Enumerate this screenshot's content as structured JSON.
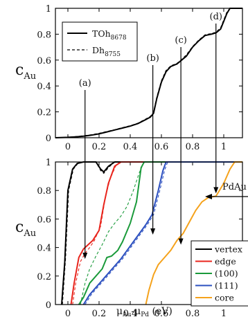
{
  "chart_data": [
    {
      "type": "line",
      "panel": "top",
      "ylabel_main": "c",
      "ylabel_sub": "Au",
      "xlim": [
        -0.08,
        1.12
      ],
      "ylim": [
        0,
        1
      ],
      "xticks": [
        "0",
        "0.2",
        "0.4",
        "0.6",
        "0.8",
        "1"
      ],
      "xtick_values": [
        0,
        0.2,
        0.4,
        0.6,
        0.8,
        1
      ],
      "yticks": [
        "0",
        "0.2",
        "0.4",
        "0.6",
        "0.8",
        "1"
      ],
      "ytick_values": [
        0,
        0.2,
        0.4,
        0.6,
        0.8,
        1
      ],
      "legend_position": "top-left",
      "series": [
        {
          "name_main": "TOh",
          "name_sub": "8678",
          "style": "solid",
          "color": "#000000",
          "points": [
            [
              -0.08,
              0.0
            ],
            [
              0,
              0.003
            ],
            [
              0.05,
              0.007
            ],
            [
              0.1,
              0.012
            ],
            [
              0.15,
              0.02
            ],
            [
              0.2,
              0.03
            ],
            [
              0.25,
              0.045
            ],
            [
              0.3,
              0.06
            ],
            [
              0.35,
              0.075
            ],
            [
              0.4,
              0.09
            ],
            [
              0.45,
              0.11
            ],
            [
              0.5,
              0.14
            ],
            [
              0.53,
              0.16
            ],
            [
              0.55,
              0.19
            ],
            [
              0.57,
              0.3
            ],
            [
              0.6,
              0.43
            ],
            [
              0.63,
              0.51
            ],
            [
              0.66,
              0.55
            ],
            [
              0.7,
              0.57
            ],
            [
              0.73,
              0.6
            ],
            [
              0.76,
              0.63
            ],
            [
              0.8,
              0.7
            ],
            [
              0.84,
              0.75
            ],
            [
              0.88,
              0.79
            ],
            [
              0.92,
              0.8
            ],
            [
              0.95,
              0.81
            ],
            [
              0.98,
              0.84
            ],
            [
              1.0,
              0.9
            ],
            [
              1.02,
              0.96
            ],
            [
              1.04,
              1.0
            ],
            [
              1.12,
              1.0
            ]
          ]
        },
        {
          "name_main": "Dh",
          "name_sub": "8755",
          "style": "dashed",
          "color": "#000000",
          "points": [
            [
              -0.08,
              0.0
            ],
            [
              0,
              0.004
            ],
            [
              0.05,
              0.009
            ],
            [
              0.1,
              0.015
            ],
            [
              0.15,
              0.023
            ],
            [
              0.2,
              0.034
            ],
            [
              0.25,
              0.048
            ],
            [
              0.3,
              0.062
            ],
            [
              0.35,
              0.078
            ],
            [
              0.4,
              0.093
            ],
            [
              0.45,
              0.113
            ],
            [
              0.5,
              0.145
            ],
            [
              0.53,
              0.165
            ],
            [
              0.55,
              0.2
            ],
            [
              0.57,
              0.31
            ],
            [
              0.6,
              0.44
            ],
            [
              0.63,
              0.52
            ],
            [
              0.66,
              0.555
            ],
            [
              0.7,
              0.575
            ],
            [
              0.73,
              0.605
            ],
            [
              0.76,
              0.64
            ],
            [
              0.8,
              0.705
            ],
            [
              0.84,
              0.755
            ],
            [
              0.88,
              0.795
            ],
            [
              0.92,
              0.805
            ],
            [
              0.95,
              0.815
            ],
            [
              0.98,
              0.85
            ],
            [
              1.0,
              0.91
            ],
            [
              1.02,
              0.97
            ],
            [
              1.04,
              1.0
            ],
            [
              1.12,
              1.0
            ]
          ]
        }
      ],
      "annotations": [
        {
          "label": "(a)",
          "x": 0.11
        },
        {
          "label": "(b)",
          "x": 0.545
        },
        {
          "label": "(c)",
          "x": 0.725
        },
        {
          "label": "(d)",
          "x": 0.95
        }
      ]
    },
    {
      "type": "line",
      "panel": "bottom",
      "ylabel_main": "c",
      "ylabel_sub": "Au",
      "xlabel_parts": [
        "μ",
        "Au",
        "-μ",
        "Pd",
        " (eV)"
      ],
      "xlim": [
        -0.08,
        1.12
      ],
      "ylim": [
        0,
        1
      ],
      "xticks": [
        "0",
        "0.2",
        "0.4",
        "0.6",
        "0.8",
        "1"
      ],
      "xtick_values": [
        0,
        0.2,
        0.4,
        0.6,
        0.8,
        1
      ],
      "yticks": [
        "0",
        "0.2",
        "0.4",
        "0.6",
        "0.8",
        "1"
      ],
      "ytick_values": [
        0,
        0.2,
        0.4,
        0.6,
        0.8,
        1
      ],
      "legend_position": "bottom-right",
      "annotation_text": "PdAu",
      "series": [
        {
          "name": "vertex",
          "color": "#000000",
          "solid": [
            [
              -0.04,
              0.0
            ],
            [
              -0.02,
              0.3
            ],
            [
              0,
              0.8
            ],
            [
              0.03,
              0.95
            ],
            [
              0.06,
              0.99
            ],
            [
              0.1,
              1.0
            ],
            [
              0.18,
              1.0
            ],
            [
              0.21,
              0.95
            ],
            [
              0.23,
              0.93
            ],
            [
              0.26,
              0.97
            ],
            [
              0.3,
              1.0
            ],
            [
              1.12,
              1.0
            ]
          ],
          "dashed": [
            [
              -0.035,
              0.0
            ],
            [
              -0.015,
              0.32
            ],
            [
              0.005,
              0.8
            ],
            [
              0.035,
              0.95
            ],
            [
              0.065,
              0.99
            ],
            [
              0.1,
              1.0
            ],
            [
              0.18,
              1.0
            ],
            [
              0.21,
              0.94
            ],
            [
              0.23,
              0.92
            ],
            [
              0.26,
              0.96
            ],
            [
              0.3,
              1.0
            ],
            [
              1.12,
              1.0
            ]
          ]
        },
        {
          "name": "edge",
          "color": "#e8241c",
          "solid": [
            [
              0.02,
              0.0
            ],
            [
              0.04,
              0.15
            ],
            [
              0.07,
              0.33
            ],
            [
              0.1,
              0.39
            ],
            [
              0.13,
              0.42
            ],
            [
              0.16,
              0.45
            ],
            [
              0.2,
              0.52
            ],
            [
              0.23,
              0.7
            ],
            [
              0.26,
              0.85
            ],
            [
              0.3,
              0.97
            ],
            [
              0.34,
              1.0
            ],
            [
              1.12,
              1.0
            ]
          ],
          "dashed": [
            [
              0.03,
              0.0
            ],
            [
              0.05,
              0.15
            ],
            [
              0.08,
              0.3
            ],
            [
              0.11,
              0.36
            ],
            [
              0.14,
              0.4
            ],
            [
              0.17,
              0.45
            ],
            [
              0.21,
              0.55
            ],
            [
              0.24,
              0.75
            ],
            [
              0.27,
              0.88
            ],
            [
              0.31,
              0.98
            ],
            [
              0.35,
              1.0
            ],
            [
              1.12,
              1.0
            ]
          ]
        },
        {
          "name": "(100)",
          "color": "#1a9a3a",
          "solid": [
            [
              0.07,
              0.0
            ],
            [
              0.1,
              0.05
            ],
            [
              0.14,
              0.15
            ],
            [
              0.18,
              0.2
            ],
            [
              0.22,
              0.25
            ],
            [
              0.25,
              0.33
            ],
            [
              0.28,
              0.34
            ],
            [
              0.32,
              0.38
            ],
            [
              0.35,
              0.44
            ],
            [
              0.4,
              0.57
            ],
            [
              0.44,
              0.72
            ],
            [
              0.47,
              0.96
            ],
            [
              0.49,
              1.0
            ],
            [
              1.12,
              1.0
            ]
          ],
          "dashed": [
            [
              0.08,
              0.0
            ],
            [
              0.11,
              0.15
            ],
            [
              0.14,
              0.25
            ],
            [
              0.18,
              0.34
            ],
            [
              0.22,
              0.42
            ],
            [
              0.26,
              0.51
            ],
            [
              0.3,
              0.57
            ],
            [
              0.34,
              0.62
            ],
            [
              0.38,
              0.69
            ],
            [
              0.42,
              0.8
            ],
            [
              0.46,
              0.93
            ],
            [
              0.49,
              1.0
            ],
            [
              1.12,
              1.0
            ]
          ]
        },
        {
          "name": "(111)",
          "color": "#2b4fbf",
          "solid": [
            [
              0.1,
              0.0
            ],
            [
              0.14,
              0.07
            ],
            [
              0.18,
              0.12
            ],
            [
              0.22,
              0.17
            ],
            [
              0.26,
              0.22
            ],
            [
              0.3,
              0.27
            ],
            [
              0.34,
              0.32
            ],
            [
              0.38,
              0.38
            ],
            [
              0.42,
              0.44
            ],
            [
              0.46,
              0.5
            ],
            [
              0.5,
              0.56
            ],
            [
              0.54,
              0.63
            ],
            [
              0.58,
              0.8
            ],
            [
              0.61,
              0.94
            ],
            [
              0.63,
              1.0
            ],
            [
              1.12,
              1.0
            ]
          ],
          "dashed": [
            [
              0.11,
              0.0
            ],
            [
              0.15,
              0.07
            ],
            [
              0.19,
              0.12
            ],
            [
              0.23,
              0.17
            ],
            [
              0.27,
              0.22
            ],
            [
              0.31,
              0.27
            ],
            [
              0.35,
              0.32
            ],
            [
              0.39,
              0.38
            ],
            [
              0.43,
              0.44
            ],
            [
              0.47,
              0.5
            ],
            [
              0.51,
              0.56
            ],
            [
              0.55,
              0.63
            ],
            [
              0.59,
              0.8
            ],
            [
              0.62,
              0.94
            ],
            [
              0.64,
              1.0
            ],
            [
              1.12,
              1.0
            ]
          ]
        },
        {
          "name": "core",
          "color": "#f5a21b",
          "solid": [
            [
              0.5,
              0.0
            ],
            [
              0.52,
              0.1
            ],
            [
              0.55,
              0.21
            ],
            [
              0.58,
              0.28
            ],
            [
              0.62,
              0.33
            ],
            [
              0.66,
              0.38
            ],
            [
              0.7,
              0.45
            ],
            [
              0.74,
              0.5
            ],
            [
              0.78,
              0.58
            ],
            [
              0.82,
              0.66
            ],
            [
              0.86,
              0.72
            ],
            [
              0.9,
              0.75
            ],
            [
              0.95,
              0.76
            ],
            [
              1.0,
              0.85
            ],
            [
              1.04,
              0.95
            ],
            [
              1.07,
              1.0
            ],
            [
              1.12,
              1.0
            ]
          ]
        }
      ],
      "annotations": [
        {
          "x": 0.11
        },
        {
          "x": 0.545
        },
        {
          "x": 0.725
        },
        {
          "x": 0.95
        }
      ]
    }
  ]
}
